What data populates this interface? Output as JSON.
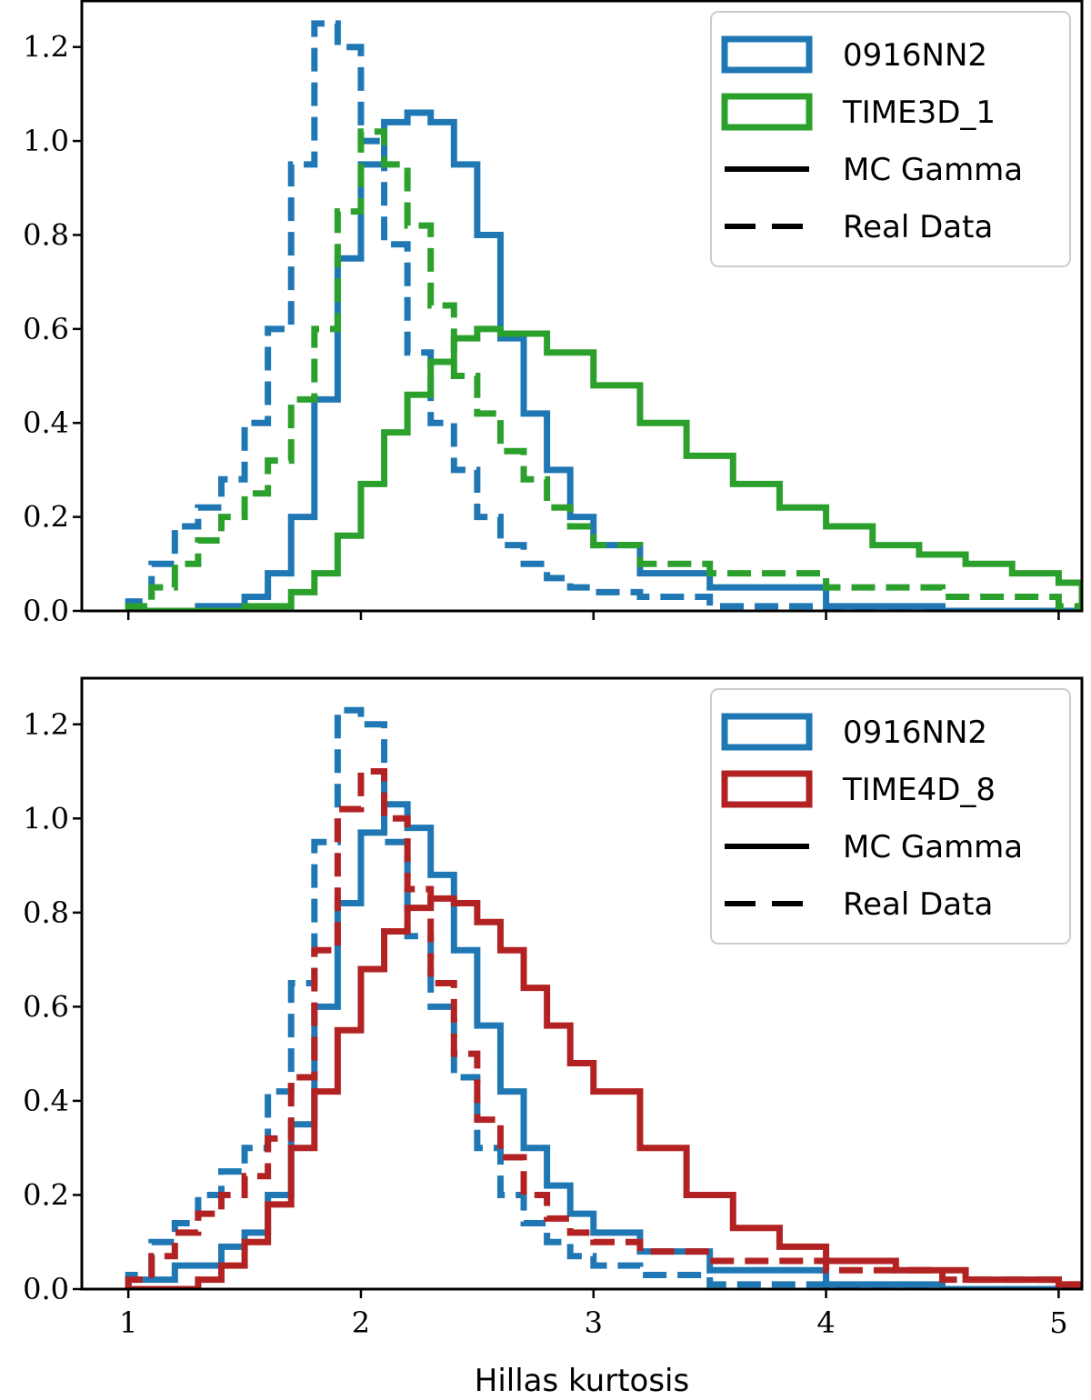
{
  "chart_data": [
    {
      "type": "histogram-step",
      "xlim": [
        0.8,
        5.1
      ],
      "ylim": [
        0,
        1.3
      ],
      "xticks": [
        1,
        2,
        3,
        4,
        5
      ],
      "xtick_labels": [
        "",
        "",
        "",
        "",
        ""
      ],
      "yticks": [
        0.0,
        0.2,
        0.4,
        0.6,
        0.8,
        1.0,
        1.2
      ],
      "ytick_labels": [
        "0.0",
        "0.2",
        "0.4",
        "0.6",
        "0.8",
        "1.0",
        "1.2"
      ],
      "xlabel": "",
      "legend_position": "top-right",
      "legend": [
        {
          "label": "0916NN2",
          "kind": "patch",
          "color": "#1f77b4"
        },
        {
          "label": "TIME3D_1",
          "kind": "patch",
          "color": "#2ca02c"
        },
        {
          "label": "MC Gamma",
          "kind": "line-solid",
          "color": "#000000"
        },
        {
          "label": "Real Data",
          "kind": "line-dashed",
          "color": "#000000"
        }
      ],
      "series": [
        {
          "name": "0916NN2 MC Gamma",
          "color": "#1f77b4",
          "style": "solid",
          "x": [
            1.0,
            1.3,
            1.5,
            1.6,
            1.7,
            1.8,
            1.9,
            2.0,
            2.1,
            2.2,
            2.3,
            2.4,
            2.5,
            2.6,
            2.7,
            2.8,
            2.9,
            3.0,
            3.2,
            3.5,
            4.0,
            4.5,
            5.0
          ],
          "y": [
            0.0,
            0.01,
            0.03,
            0.08,
            0.2,
            0.45,
            0.75,
            0.95,
            1.04,
            1.06,
            1.04,
            0.95,
            0.8,
            0.58,
            0.42,
            0.3,
            0.2,
            0.14,
            0.08,
            0.05,
            0.01,
            0.0,
            0.0
          ]
        },
        {
          "name": "0916NN2 Real Data",
          "color": "#1f77b4",
          "style": "dashed",
          "x": [
            1.0,
            1.1,
            1.2,
            1.3,
            1.4,
            1.5,
            1.6,
            1.7,
            1.8,
            1.9,
            2.0,
            2.1,
            2.2,
            2.3,
            2.4,
            2.5,
            2.6,
            2.7,
            2.8,
            2.9,
            3.0,
            3.2,
            3.5,
            4.0,
            4.5,
            5.0
          ],
          "y": [
            0.02,
            0.1,
            0.18,
            0.22,
            0.28,
            0.4,
            0.6,
            0.95,
            1.25,
            1.2,
            1.0,
            0.78,
            0.55,
            0.4,
            0.3,
            0.2,
            0.14,
            0.1,
            0.07,
            0.05,
            0.04,
            0.03,
            0.01,
            0.0,
            0.0,
            0.0
          ]
        },
        {
          "name": "TIME3D_1 MC Gamma",
          "color": "#2ca02c",
          "style": "solid",
          "x": [
            1.0,
            1.5,
            1.7,
            1.8,
            1.9,
            2.0,
            2.1,
            2.2,
            2.3,
            2.4,
            2.5,
            2.6,
            2.8,
            3.0,
            3.2,
            3.4,
            3.6,
            3.8,
            4.0,
            4.2,
            4.4,
            4.6,
            4.8,
            5.0
          ],
          "y": [
            0.0,
            0.01,
            0.04,
            0.08,
            0.16,
            0.27,
            0.38,
            0.46,
            0.53,
            0.58,
            0.6,
            0.59,
            0.55,
            0.48,
            0.4,
            0.33,
            0.27,
            0.22,
            0.18,
            0.14,
            0.12,
            0.1,
            0.08,
            0.06
          ]
        },
        {
          "name": "TIME3D_1 Real Data",
          "color": "#2ca02c",
          "style": "dashed",
          "x": [
            1.0,
            1.1,
            1.2,
            1.3,
            1.4,
            1.5,
            1.6,
            1.7,
            1.8,
            1.9,
            2.0,
            2.1,
            2.2,
            2.3,
            2.4,
            2.5,
            2.6,
            2.7,
            2.8,
            2.9,
            3.0,
            3.2,
            3.5,
            4.0,
            4.5,
            5.0
          ],
          "y": [
            0.01,
            0.05,
            0.1,
            0.15,
            0.2,
            0.25,
            0.32,
            0.45,
            0.6,
            0.85,
            1.02,
            0.95,
            0.82,
            0.65,
            0.5,
            0.42,
            0.34,
            0.28,
            0.22,
            0.18,
            0.14,
            0.1,
            0.08,
            0.05,
            0.03,
            0.01
          ]
        }
      ]
    },
    {
      "type": "histogram-step",
      "xlim": [
        0.8,
        5.1
      ],
      "ylim": [
        0,
        1.3
      ],
      "xticks": [
        1,
        2,
        3,
        4,
        5
      ],
      "xtick_labels": [
        "1",
        "2",
        "3",
        "4",
        "5"
      ],
      "yticks": [
        0.0,
        0.2,
        0.4,
        0.6,
        0.8,
        1.0,
        1.2
      ],
      "ytick_labels": [
        "0.0",
        "0.2",
        "0.4",
        "0.6",
        "0.8",
        "1.0",
        "1.2"
      ],
      "xlabel": "Hillas kurtosis",
      "legend_position": "top-right",
      "legend": [
        {
          "label": "0916NN2",
          "kind": "patch",
          "color": "#1f77b4"
        },
        {
          "label": "TIME4D_8",
          "kind": "patch",
          "color": "#b22222"
        },
        {
          "label": "MC Gamma",
          "kind": "line-solid",
          "color": "#000000"
        },
        {
          "label": "Real Data",
          "kind": "line-dashed",
          "color": "#000000"
        }
      ],
      "series": [
        {
          "name": "0916NN2 MC Gamma",
          "color": "#1f77b4",
          "style": "solid",
          "x": [
            1.0,
            1.2,
            1.4,
            1.5,
            1.6,
            1.7,
            1.8,
            1.9,
            2.0,
            2.1,
            2.2,
            2.3,
            2.4,
            2.5,
            2.6,
            2.7,
            2.8,
            2.9,
            3.0,
            3.2,
            3.5,
            4.0,
            4.5,
            5.0
          ],
          "y": [
            0.02,
            0.05,
            0.09,
            0.12,
            0.2,
            0.35,
            0.6,
            0.82,
            0.97,
            1.03,
            0.98,
            0.88,
            0.72,
            0.56,
            0.42,
            0.3,
            0.22,
            0.16,
            0.12,
            0.08,
            0.04,
            0.01,
            0.0,
            0.0
          ]
        },
        {
          "name": "0916NN2 Real Data",
          "color": "#1f77b4",
          "style": "dashed",
          "x": [
            1.0,
            1.1,
            1.2,
            1.3,
            1.4,
            1.5,
            1.6,
            1.7,
            1.8,
            1.9,
            2.0,
            2.1,
            2.2,
            2.3,
            2.4,
            2.5,
            2.6,
            2.7,
            2.8,
            2.9,
            3.0,
            3.2,
            3.5,
            4.0,
            4.5,
            5.0
          ],
          "y": [
            0.03,
            0.1,
            0.14,
            0.2,
            0.25,
            0.3,
            0.42,
            0.65,
            0.95,
            1.23,
            1.2,
            0.95,
            0.75,
            0.6,
            0.45,
            0.3,
            0.2,
            0.14,
            0.1,
            0.07,
            0.05,
            0.03,
            0.01,
            0.0,
            0.0,
            0.0
          ]
        },
        {
          "name": "TIME4D_8 MC Gamma",
          "color": "#b22222",
          "style": "solid",
          "x": [
            1.0,
            1.3,
            1.4,
            1.5,
            1.6,
            1.7,
            1.8,
            1.9,
            2.0,
            2.1,
            2.2,
            2.3,
            2.4,
            2.5,
            2.6,
            2.7,
            2.8,
            2.9,
            3.0,
            3.2,
            3.4,
            3.6,
            3.8,
            4.0,
            4.3,
            4.6,
            5.0
          ],
          "y": [
            0.0,
            0.02,
            0.05,
            0.1,
            0.18,
            0.3,
            0.42,
            0.55,
            0.68,
            0.76,
            0.81,
            0.83,
            0.82,
            0.78,
            0.72,
            0.64,
            0.56,
            0.48,
            0.42,
            0.3,
            0.2,
            0.13,
            0.09,
            0.06,
            0.04,
            0.02,
            0.01
          ]
        },
        {
          "name": "TIME4D_8 Real Data",
          "color": "#b22222",
          "style": "dashed",
          "x": [
            1.0,
            1.1,
            1.2,
            1.3,
            1.4,
            1.5,
            1.6,
            1.7,
            1.8,
            1.9,
            2.0,
            2.1,
            2.2,
            2.3,
            2.4,
            2.5,
            2.6,
            2.7,
            2.8,
            2.9,
            3.0,
            3.2,
            3.5,
            4.0,
            4.5,
            5.0
          ],
          "y": [
            0.02,
            0.07,
            0.12,
            0.16,
            0.2,
            0.24,
            0.32,
            0.45,
            0.72,
            1.02,
            1.1,
            1.0,
            0.85,
            0.65,
            0.5,
            0.36,
            0.28,
            0.2,
            0.15,
            0.12,
            0.1,
            0.08,
            0.06,
            0.04,
            0.02,
            0.01
          ]
        }
      ]
    }
  ]
}
